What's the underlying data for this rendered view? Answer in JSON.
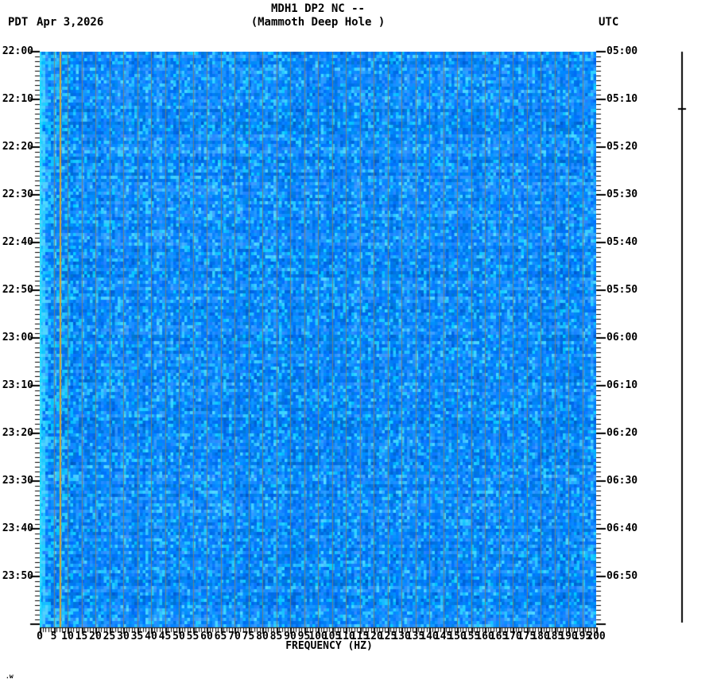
{
  "header": {
    "title_line1": "MDH1 DP2 NC --",
    "title_line2": "(Mammoth Deep Hole )",
    "left_timezone": "PDT",
    "date": "Apr 3,2026",
    "right_timezone": "UTC"
  },
  "footer_mark": ".w",
  "chart_data": {
    "type": "heatmap",
    "title": "MDH1 DP2 NC -- (Mammoth Deep Hole )",
    "subtitle": "Seismic spectrogram, Apr 3,2026",
    "xlabel": "FREQUENCY (HZ)",
    "x_range_hz": [
      0,
      200
    ],
    "x_major_tick_step_hz": 5,
    "x_minor_tick_step_hz": 1,
    "x_tick_labels": [
      "0",
      "5",
      "10",
      "15",
      "20",
      "25",
      "30",
      "35",
      "40",
      "45",
      "50",
      "55",
      "60",
      "65",
      "70",
      "75",
      "80",
      "85",
      "90",
      "95",
      "100",
      "105",
      "110",
      "115",
      "120",
      "125",
      "130",
      "135",
      "140",
      "145",
      "150",
      "155",
      "160",
      "165",
      "170",
      "175",
      "180",
      "185",
      "190",
      "195",
      "200"
    ],
    "left_axis_timezone": "PDT",
    "left_axis_times": [
      "22:00",
      "22:10",
      "22:20",
      "22:30",
      "22:40",
      "22:50",
      "23:00",
      "23:10",
      "23:20",
      "23:30",
      "23:40",
      "23:50"
    ],
    "right_axis_timezone": "UTC",
    "right_axis_times": [
      "05:00",
      "05:10",
      "05:20",
      "05:30",
      "05:40",
      "05:50",
      "06:00",
      "06:10",
      "06:20",
      "06:30",
      "06:40",
      "06:50"
    ],
    "time_span_minutes": 120,
    "time_minor_tick_minutes": 1,
    "time_major_tick_minutes": 10,
    "legend": "none",
    "grid": "vertical lines every 5 Hz",
    "content_note": "broadband stochastic blue noise, no discrete events",
    "features": {
      "persistent_tone_hz": 7,
      "persistent_tone_color": "#cfa43a",
      "low_freq_edge_hz": 1,
      "low_freq_edge_color": "#00ddf5",
      "grid_line_color": "#83806a"
    },
    "palette": {
      "base_blue": "#0076f4",
      "deep_blue": "#0051e8",
      "light_blue": "#00a6ff",
      "cyan": "#00c3ff",
      "bright_cyan": "#00e0ff"
    }
  },
  "scale_bar": {
    "description": "amplitude reference bar",
    "color": "#000000"
  }
}
